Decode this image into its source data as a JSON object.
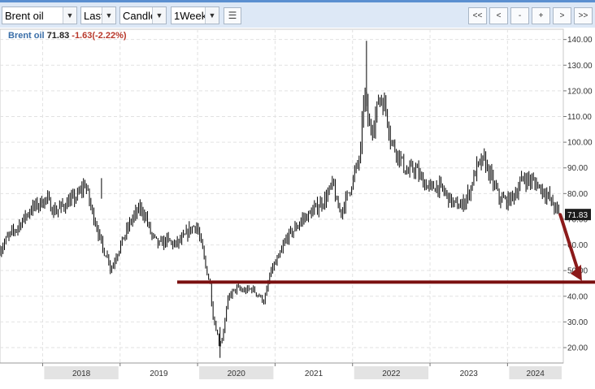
{
  "toolbar": {
    "symbol": "Brent oil",
    "price_field": "Last",
    "chart_style": "Candle",
    "interval": "1Week",
    "nav_buttons": [
      "<<",
      "<",
      "-",
      "+",
      ">",
      ">>"
    ]
  },
  "legend": {
    "name": "Brent oil",
    "last": "71.83",
    "change": "-1.63(-2.22%)"
  },
  "colors": {
    "legend_name": "#3a6ea8",
    "legend_change": "#b8382b",
    "candles": "#000000",
    "support_line": "#7a0f0f",
    "arrow": "#8b1a1a",
    "price_badge": "#1c1c1c"
  },
  "chart_data": {
    "type": "line",
    "title": "",
    "xlabel": "",
    "ylabel": "",
    "x_tick_labels": [
      "2018",
      "2019",
      "2020",
      "2021",
      "2022",
      "2023",
      "2024"
    ],
    "y_tick_labels": [
      "20.00",
      "30.00",
      "40.00",
      "50.00",
      "60.00",
      "70.00",
      "80.00",
      "90.00",
      "100.00",
      "110.00",
      "120.00",
      "130.00",
      "140.00"
    ],
    "ylim": [
      14,
      144
    ],
    "xlim": [
      2017.45,
      2024.72
    ],
    "grid": true,
    "last_price_label": "71.83",
    "support_level": 45.5,
    "arrow": {
      "from": [
        2024.68,
        71.8
      ],
      "to": [
        2024.96,
        46.0
      ]
    },
    "series": [
      {
        "x": [
          2017.45,
          2017.55,
          2017.65,
          2017.75,
          2017.85,
          2017.95,
          2018.05,
          2018.15,
          2018.25,
          2018.35,
          2018.45,
          2018.55,
          2018.62,
          2018.7,
          2018.78,
          2018.85,
          2018.88,
          2018.95,
          2019.05,
          2019.15,
          2019.25,
          2019.32,
          2019.4,
          2019.5,
          2019.6,
          2019.7,
          2019.8,
          2019.9,
          2019.98,
          2020.05,
          2020.1,
          2020.16,
          2020.2,
          2020.25,
          2020.28,
          2020.32,
          2020.4,
          2020.5,
          2020.6,
          2020.7,
          2020.8,
          2020.86,
          2020.95,
          2021.05,
          2021.15,
          2021.25,
          2021.35,
          2021.45,
          2021.55,
          2021.65,
          2021.75,
          2021.8,
          2021.85,
          2021.92,
          2022.0,
          2022.1,
          2022.15,
          2022.22,
          2022.28,
          2022.35,
          2022.43,
          2022.5,
          2022.6,
          2022.7,
          2022.8,
          2022.9,
          2023.0,
          2023.1,
          2023.2,
          2023.3,
          2023.4,
          2023.5,
          2023.6,
          2023.7,
          2023.8,
          2023.9,
          2024.0,
          2024.1,
          2024.2,
          2024.3,
          2024.4,
          2024.5,
          2024.6,
          2024.68
        ],
        "close": [
          58,
          63,
          66,
          70,
          74,
          76,
          78,
          73,
          75,
          77,
          79,
          84,
          75,
          67,
          58,
          55,
          50,
          56,
          63,
          70,
          74,
          72,
          64,
          60,
          62,
          60,
          62,
          66,
          68,
          60,
          52,
          45,
          32,
          26,
          21,
          24,
          40,
          43,
          42,
          43,
          40,
          38,
          50,
          55,
          63,
          66,
          70,
          72,
          75,
          78,
          84,
          75,
          73,
          78,
          85,
          95,
          120,
          105,
          108,
          118,
          113,
          100,
          95,
          88,
          90,
          85,
          82,
          83,
          80,
          76,
          75,
          80,
          90,
          93,
          85,
          78,
          77,
          80,
          86,
          85,
          83,
          80,
          75,
          71.83
        ]
      }
    ]
  }
}
